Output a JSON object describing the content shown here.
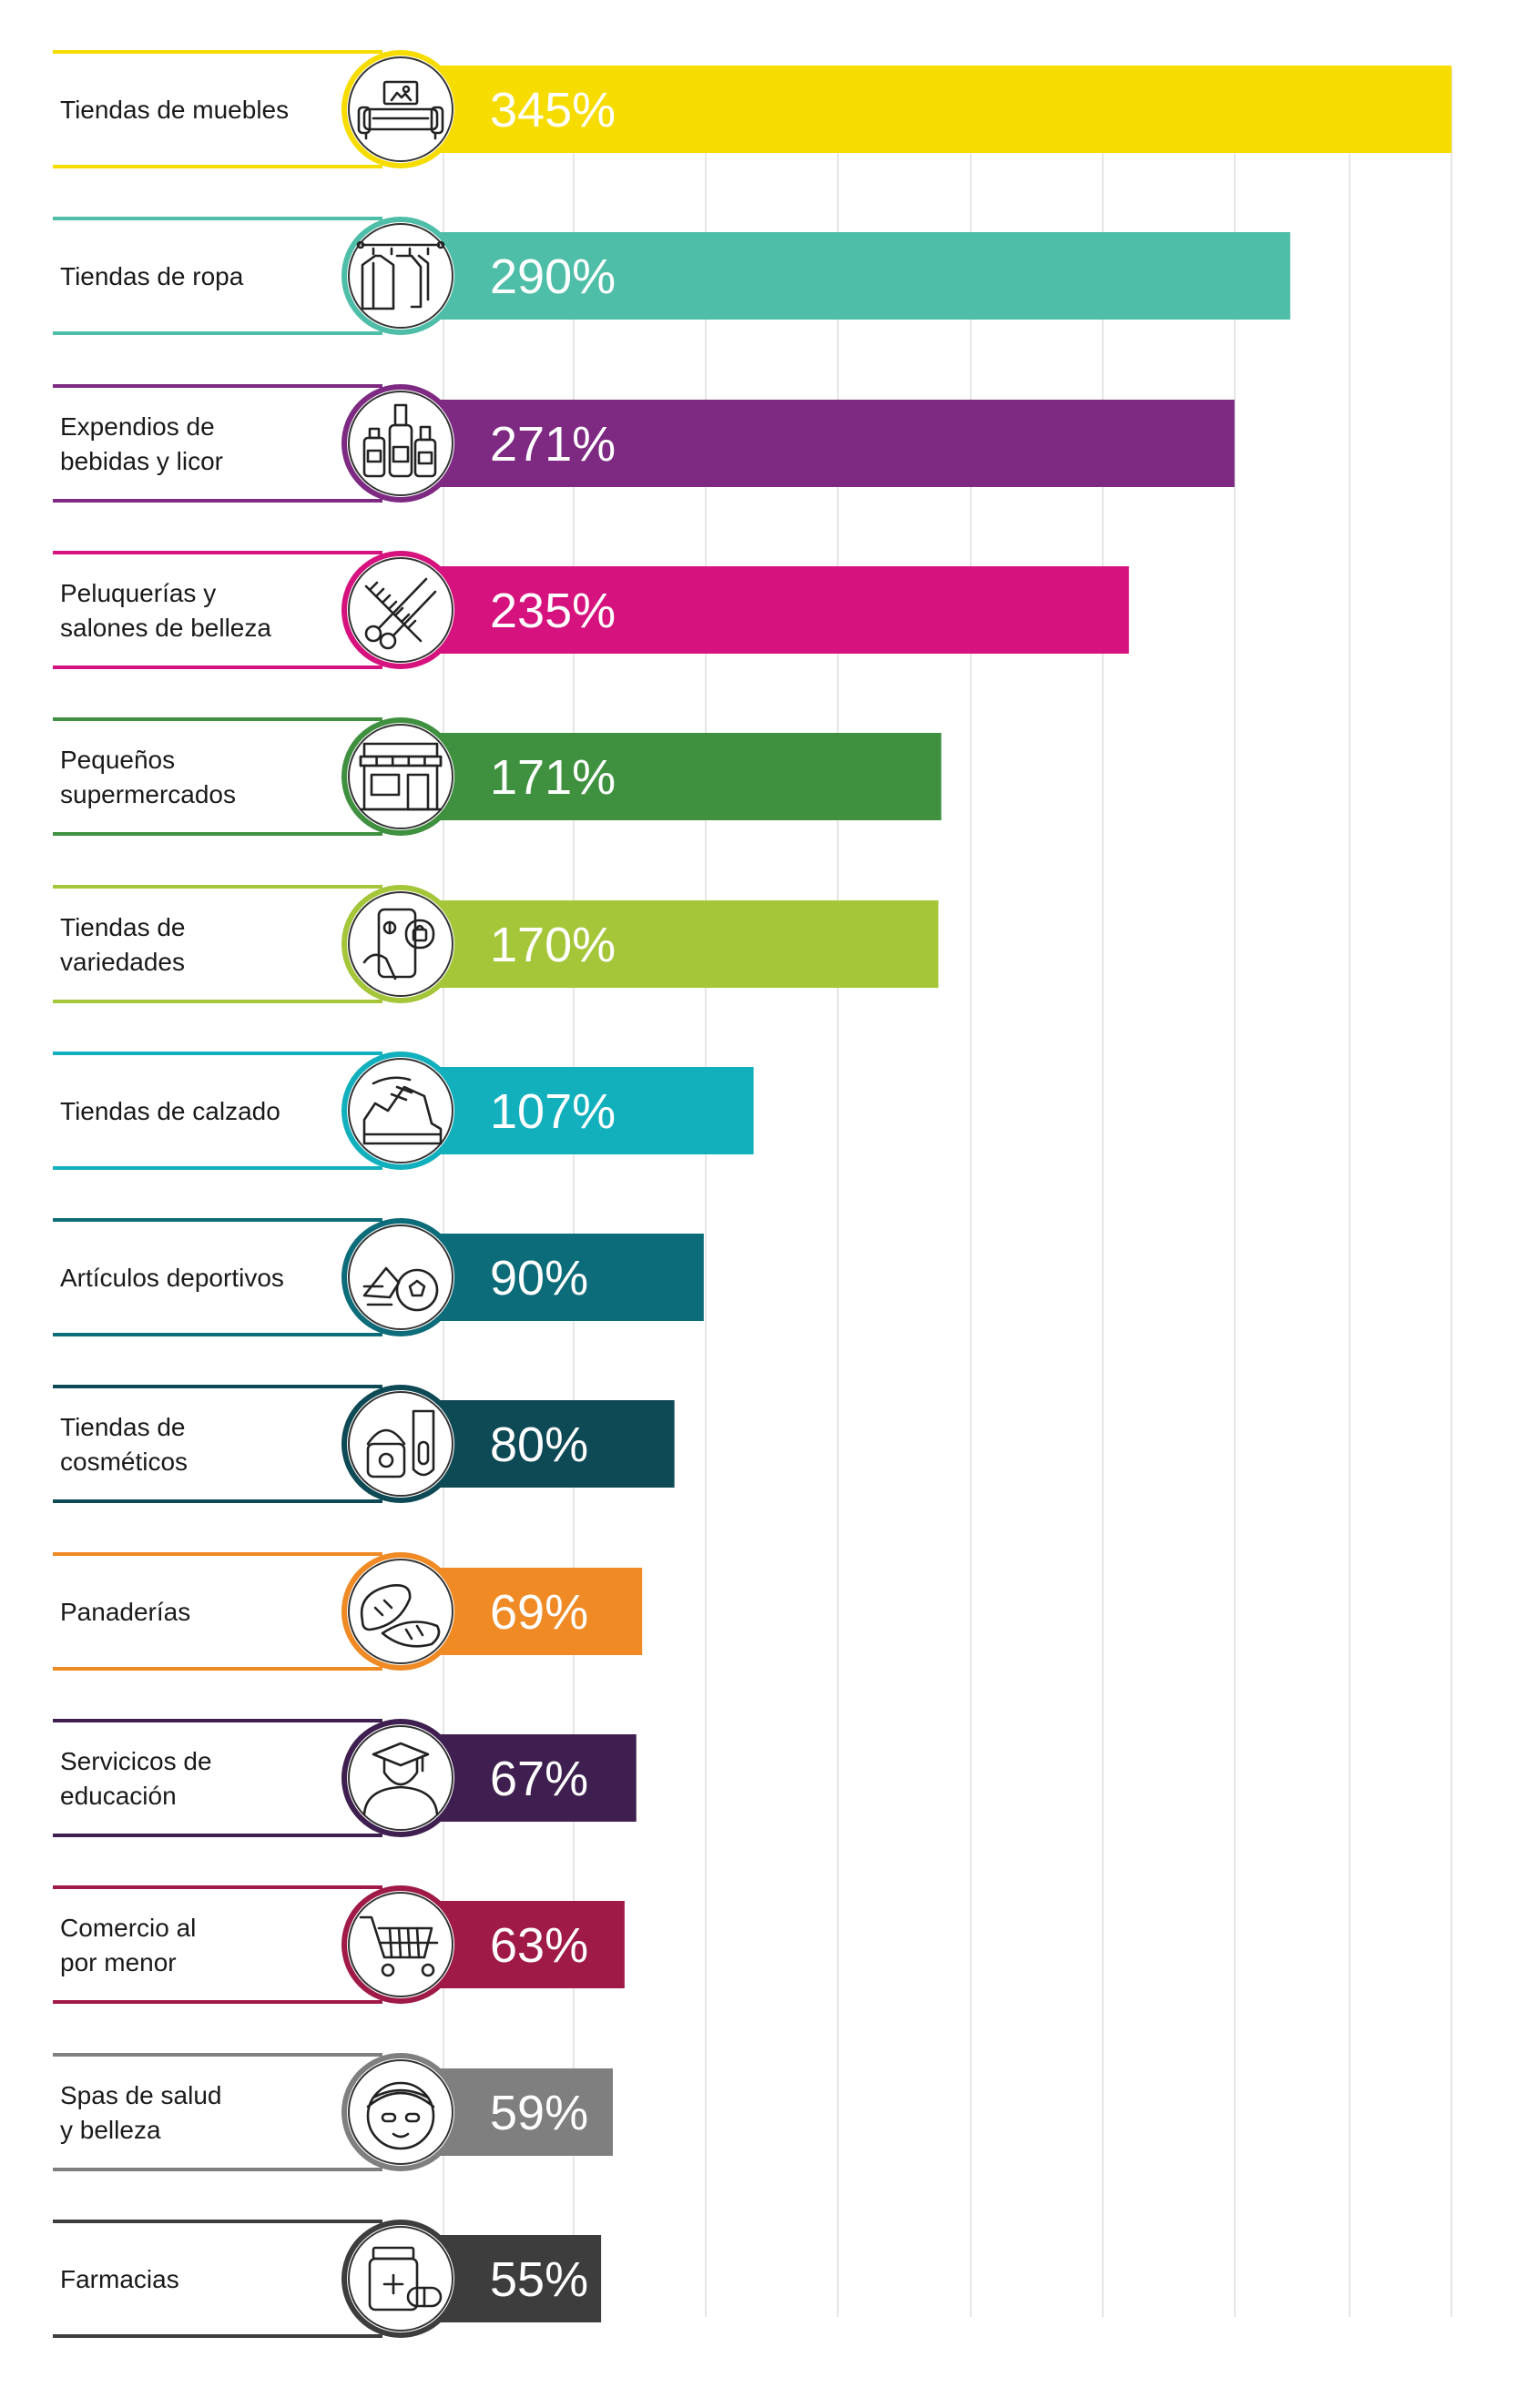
{
  "chart_data": {
    "type": "bar",
    "orientation": "horizontal",
    "xlim": [
      0,
      400
    ],
    "grid": true,
    "categories": [
      {
        "label_lines": [
          "Tiendas de muebles"
        ],
        "value": 345,
        "value_label": "345%",
        "color": "#f7dc00",
        "icon": "sofa-icon"
      },
      {
        "label_lines": [
          "Tiendas de ropa"
        ],
        "value": 290,
        "value_label": "290%",
        "color": "#4fbea8",
        "icon": "clothes-rack-icon"
      },
      {
        "label_lines": [
          "Expendios de",
          "bebidas y licor"
        ],
        "value": 271,
        "value_label": "271%",
        "color": "#7e2a83",
        "icon": "bottles-icon"
      },
      {
        "label_lines": [
          "Peluquerías y",
          "salones de belleza"
        ],
        "value": 235,
        "value_label": "235%",
        "color": "#d5127d",
        "icon": "scissors-comb-icon"
      },
      {
        "label_lines": [
          "Pequeños",
          "supermercados"
        ],
        "value": 171,
        "value_label": "171%",
        "color": "#3f9140",
        "icon": "store-icon"
      },
      {
        "label_lines": [
          "Tiendas de",
          "variedades"
        ],
        "value": 170,
        "value_label": "170%",
        "color": "#a6c63a",
        "icon": "phone-shopping-icon"
      },
      {
        "label_lines": [
          "Tiendas de calzado"
        ],
        "value": 107,
        "value_label": "107%",
        "color": "#12b0bd",
        "icon": "sneaker-icon"
      },
      {
        "label_lines": [
          "Artículos deportivos"
        ],
        "value": 90,
        "value_label": "90%",
        "color": "#0d6c79",
        "icon": "soccer-ball-icon"
      },
      {
        "label_lines": [
          "Tiendas de",
          "cosméticos"
        ],
        "value": 80,
        "value_label": "80%",
        "color": "#0d4a55",
        "icon": "cosmetics-icon"
      },
      {
        "label_lines": [
          "Panaderías"
        ],
        "value": 69,
        "value_label": "69%",
        "color": "#ef8a24",
        "icon": "bread-icon"
      },
      {
        "label_lines": [
          "Servicicos de",
          "educación"
        ],
        "value": 67,
        "value_label": "67%",
        "color": "#3f1f50",
        "icon": "graduate-icon"
      },
      {
        "label_lines": [
          "Comercio al",
          "por menor"
        ],
        "value": 63,
        "value_label": "63%",
        "color": "#a01a48",
        "icon": "shopping-cart-icon"
      },
      {
        "label_lines": [
          "Spas de salud",
          "y belleza"
        ],
        "value": 59,
        "value_label": "59%",
        "color": "#7f7f7f",
        "icon": "spa-face-icon"
      },
      {
        "label_lines": [
          "Farmacias"
        ],
        "value": 55,
        "value_label": "55%",
        "color": "#3d3d3d",
        "icon": "medicine-icon"
      }
    ]
  }
}
